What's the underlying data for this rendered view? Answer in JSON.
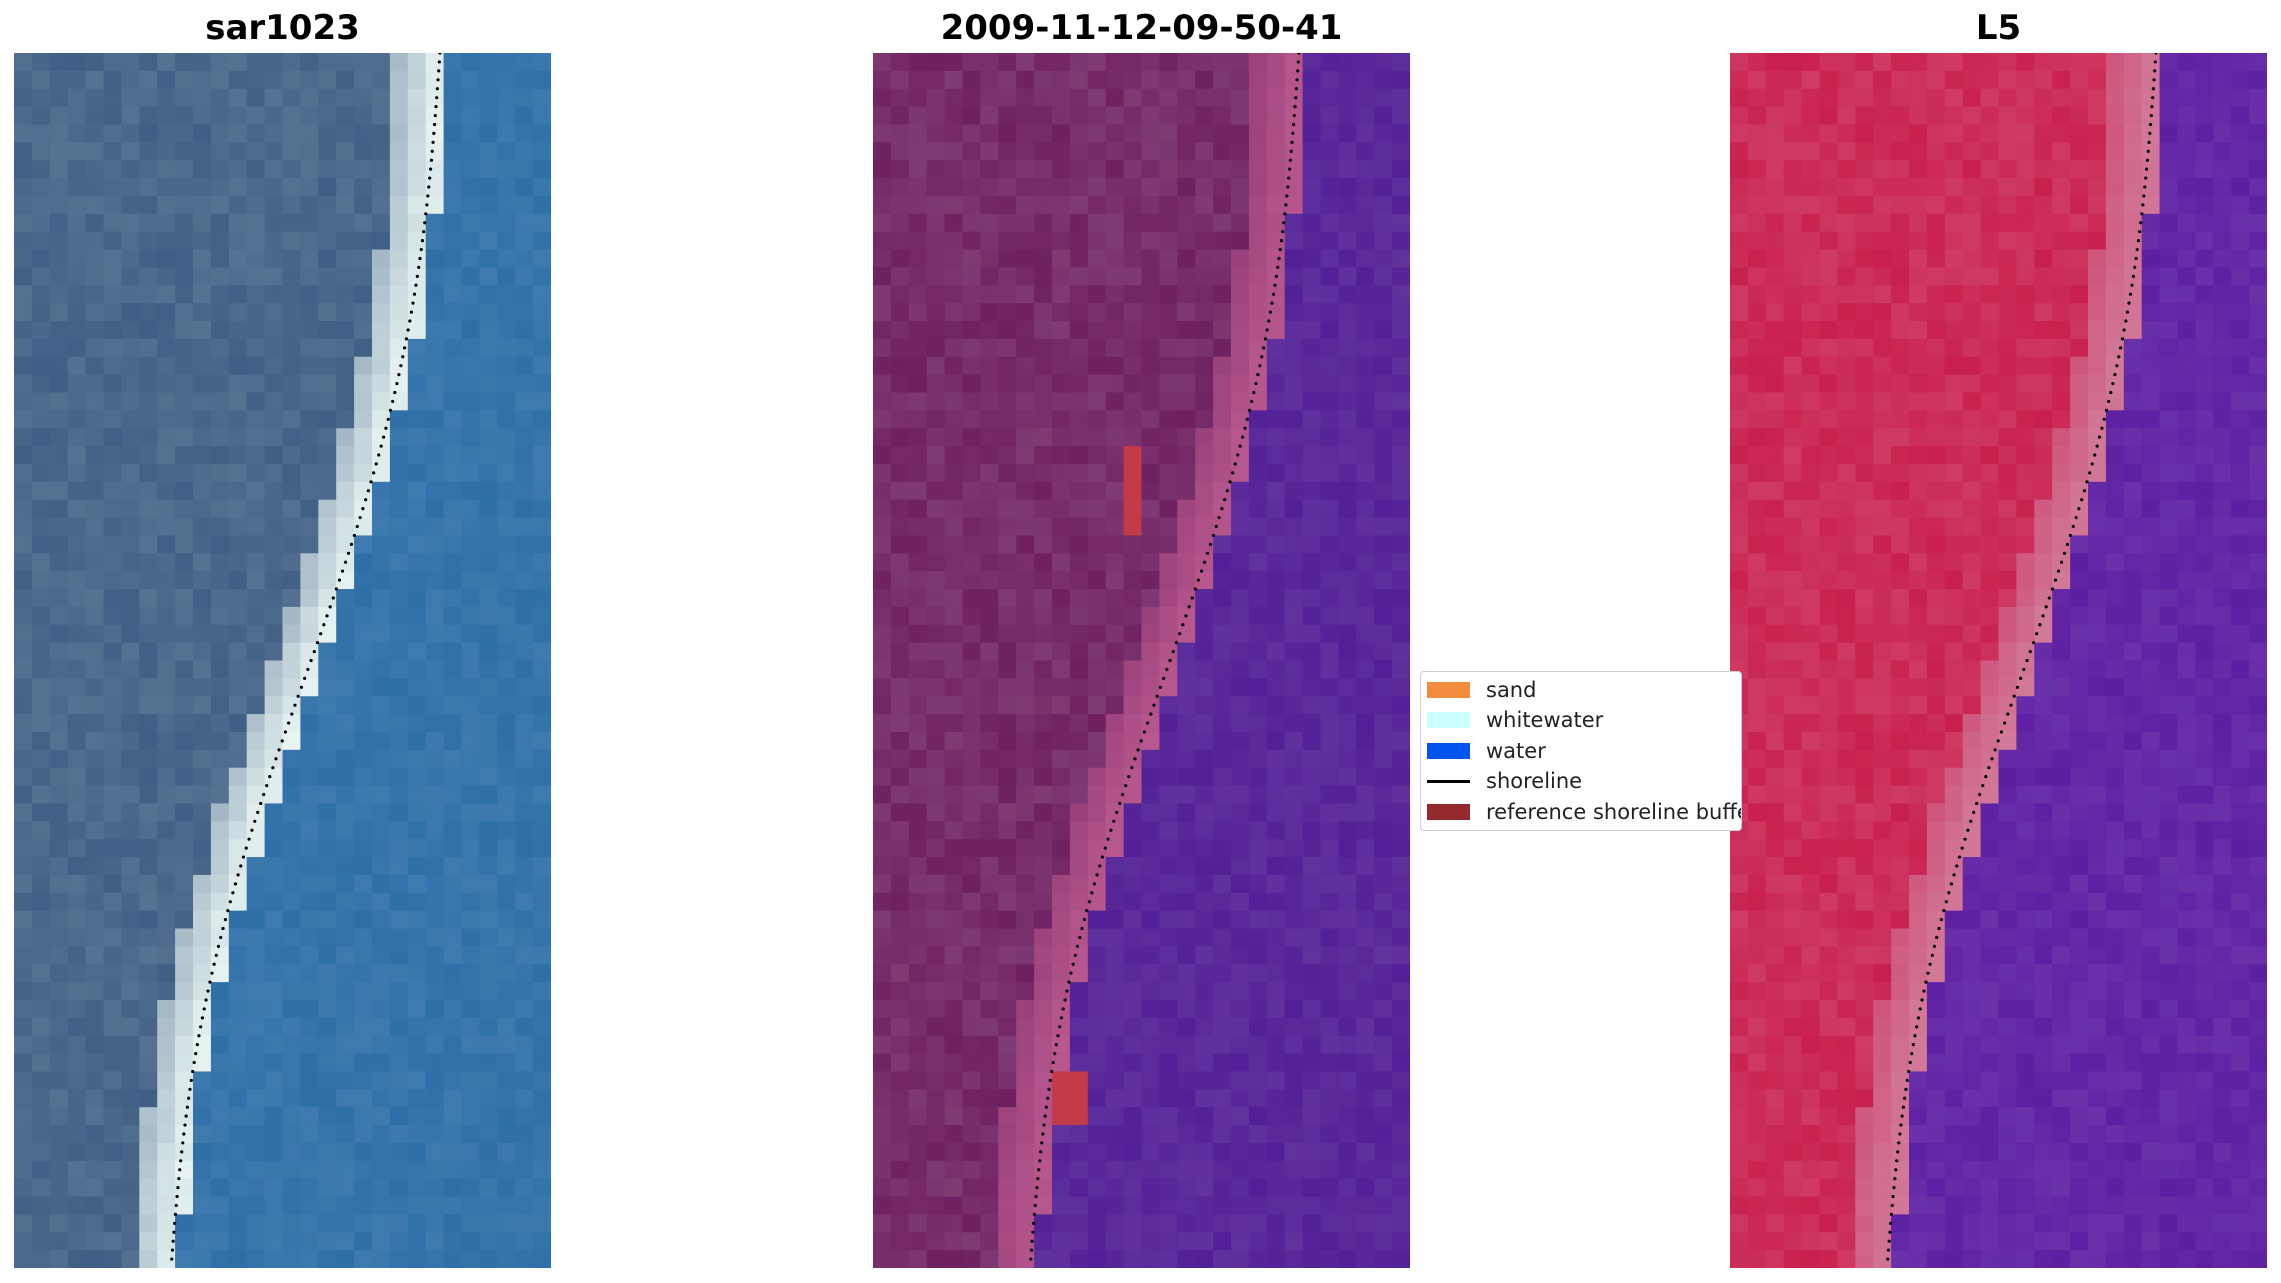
{
  "figure": {
    "panels": [
      {
        "title": "sar1023",
        "kind": "rgb"
      },
      {
        "title": "2009-11-12-09-50-41",
        "kind": "classified"
      },
      {
        "title": "L5",
        "kind": "mndwi"
      }
    ]
  },
  "legend": {
    "items": [
      {
        "label": "sand",
        "color": "#F28C3C",
        "type": "patch"
      },
      {
        "label": "whitewater",
        "color": "#CCFFFF",
        "type": "patch"
      },
      {
        "label": "water",
        "color": "#0055EE",
        "type": "patch"
      },
      {
        "label": "shoreline",
        "color": "#000000",
        "type": "line"
      },
      {
        "label": "reference shoreline buffer",
        "color": "#952A2E",
        "type": "patch"
      }
    ]
  },
  "colors": {
    "rgb_land": "#3F5F84",
    "rgb_beach": "#E8F4F2",
    "rgb_water": "#2E6FA8",
    "class_land": "#6E2060",
    "class_beach": "#B8588E",
    "class_water": "#522096",
    "class_buffer": "#C33A48",
    "index_land": "#C8204E",
    "index_beach": "#D27A9A",
    "index_water": "#5E1FA2",
    "shoreline": "#000000"
  }
}
